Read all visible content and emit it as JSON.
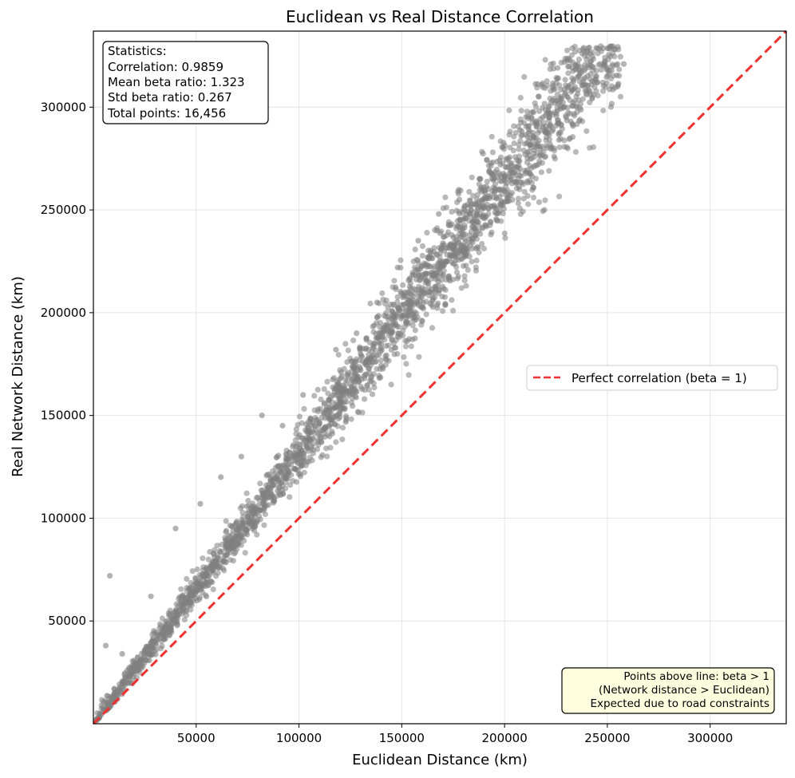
{
  "chart_data": {
    "type": "scatter",
    "title": "Euclidean vs Real Distance Correlation",
    "xlabel": "Euclidean Distance (km)",
    "ylabel": "Real Network Distance (km)",
    "xlim": [
      0,
      337000
    ],
    "ylim": [
      0,
      337000
    ],
    "xticks": [
      50000,
      100000,
      150000,
      200000,
      250000,
      300000
    ],
    "yticks": [
      50000,
      100000,
      150000,
      200000,
      250000,
      300000
    ],
    "grid": true,
    "series": [
      {
        "marker_color": "#808080",
        "trend": "y ≈ 1.32·x with spread widening with distance",
        "points": [
          [
            2000,
            2600
          ],
          [
            3500,
            4800
          ],
          [
            5000,
            7000
          ],
          [
            6000,
            38000
          ],
          [
            7500,
            9800
          ],
          [
            8000,
            72000
          ],
          [
            10000,
            13500
          ],
          [
            12000,
            16000
          ],
          [
            14000,
            34000
          ],
          [
            15000,
            20000
          ],
          [
            18000,
            24000
          ],
          [
            20000,
            27000
          ],
          [
            22000,
            29500
          ],
          [
            25000,
            33000
          ],
          [
            28000,
            62000
          ],
          [
            30000,
            40000
          ],
          [
            33000,
            44000
          ],
          [
            35000,
            47000
          ],
          [
            38000,
            50500
          ],
          [
            40000,
            95000
          ],
          [
            42000,
            55000
          ],
          [
            45000,
            60000
          ],
          [
            48000,
            64000
          ],
          [
            50000,
            66000
          ],
          [
            52000,
            107000
          ],
          [
            55000,
            73000
          ],
          [
            58000,
            76000
          ],
          [
            60000,
            80000
          ],
          [
            62000,
            120000
          ],
          [
            65000,
            86000
          ],
          [
            68000,
            90000
          ],
          [
            70000,
            93000
          ],
          [
            72000,
            130000
          ],
          [
            75000,
            99000
          ],
          [
            78000,
            103000
          ],
          [
            80000,
            106000
          ],
          [
            82000,
            150000
          ],
          [
            85000,
            112000
          ],
          [
            88000,
            116000
          ],
          [
            90000,
            119000
          ],
          [
            92000,
            145000
          ],
          [
            95000,
            126000
          ],
          [
            98000,
            130000
          ],
          [
            100000,
            132000
          ],
          [
            102000,
            160000
          ],
          [
            105000,
            139000
          ],
          [
            108000,
            143000
          ],
          [
            110000,
            146000
          ],
          [
            115000,
            152000
          ],
          [
            118000,
            182000
          ],
          [
            120000,
            159000
          ],
          [
            125000,
            165000
          ],
          [
            128000,
            190000
          ],
          [
            130000,
            172000
          ],
          [
            135000,
            178000
          ],
          [
            138000,
            205000
          ],
          [
            140000,
            185000
          ],
          [
            145000,
            192000
          ],
          [
            148000,
            222000
          ],
          [
            150000,
            198000
          ],
          [
            155000,
            205000
          ],
          [
            158000,
            235000
          ],
          [
            160000,
            212000
          ],
          [
            165000,
            218000
          ],
          [
            168000,
            248000
          ],
          [
            170000,
            225000
          ],
          [
            175000,
            231000
          ],
          [
            178000,
            255000
          ],
          [
            180000,
            238000
          ],
          [
            185000,
            245000
          ],
          [
            188000,
            265000
          ],
          [
            190000,
            251000
          ],
          [
            195000,
            258000
          ],
          [
            198000,
            272000
          ],
          [
            200000,
            264000
          ],
          [
            205000,
            271000
          ],
          [
            210000,
            277000
          ],
          [
            215000,
            282000
          ],
          [
            220000,
            288000
          ],
          [
            225000,
            291000
          ],
          [
            230000,
            295000
          ],
          [
            235000,
            300000
          ],
          [
            240000,
            308000
          ],
          [
            245000,
            312000
          ],
          [
            250000,
            318000
          ],
          [
            255000,
            310000
          ],
          [
            258000,
            321000
          ]
        ]
      }
    ],
    "reference_line": {
      "label": "Perfect correlation (beta = 1)",
      "color": "#f03030",
      "slope": 1,
      "style": "dashed"
    },
    "legend_placement": "center-right"
  },
  "stats_box": {
    "lines": [
      "Statistics:",
      "Correlation: 0.9859",
      "Mean beta ratio: 1.323",
      "Std beta ratio: 0.267",
      "Total points: 16,456"
    ]
  },
  "note_box": {
    "lines": [
      "Points above line: beta > 1",
      "(Network distance > Euclidean)",
      "Expected due to road constraints"
    ],
    "background": "#ffffe0"
  }
}
